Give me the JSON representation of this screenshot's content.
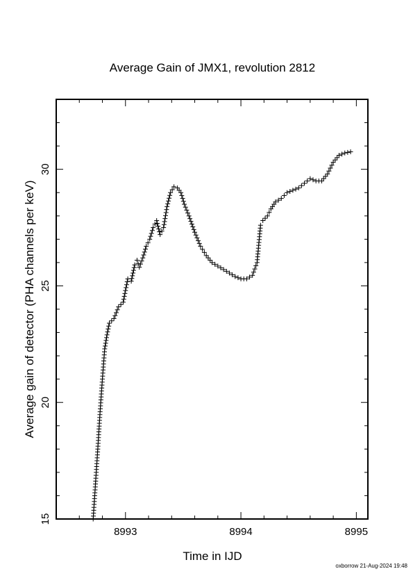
{
  "chart_data": {
    "type": "scatter",
    "title": "Average Gain of JMX1, revolution 2812",
    "xlabel": "Time in IJD",
    "ylabel": "Average gain of detector (PHA channels per keV)",
    "xlim": [
      8992.4,
      8995.1
    ],
    "ylim": [
      15,
      33
    ],
    "xticks": [
      8993,
      8994,
      8995
    ],
    "xtick_labels": [
      "8993",
      "8994",
      "8995"
    ],
    "yticks": [
      15,
      20,
      25,
      30
    ],
    "ytick_labels": [
      "15",
      "20",
      "25",
      "30"
    ],
    "grid": false,
    "marker": "+",
    "series": [
      {
        "x": [
          8992.72,
          8992.74,
          8992.76,
          8992.78,
          8992.8,
          8992.82,
          8992.84,
          8992.86,
          8992.88,
          8992.9,
          8992.94,
          8992.98,
          8993.02,
          8993.05,
          8993.08,
          8993.1,
          8993.12,
          8993.15,
          8993.18,
          8993.21,
          8993.24,
          8993.27,
          8993.3,
          8993.33,
          8993.36,
          8993.39,
          8993.42,
          8993.45,
          8993.48,
          8993.51,
          8993.55,
          8993.6,
          8993.65,
          8993.7,
          8993.75,
          8993.8,
          8993.85,
          8993.9,
          8993.95,
          8994.0,
          8994.05,
          8994.1,
          8994.14,
          8994.17,
          8994.19,
          8994.21,
          8994.23,
          8994.26,
          8994.3,
          8994.35,
          8994.4,
          8994.45,
          8994.5,
          8994.55,
          8994.6,
          8994.65,
          8994.7,
          8994.75,
          8994.8,
          8994.85,
          8994.9,
          8994.95
        ],
        "y": [
          15.0,
          16.5,
          18.0,
          19.6,
          21.0,
          22.3,
          22.9,
          23.4,
          23.5,
          23.6,
          24.1,
          24.3,
          25.3,
          25.2,
          25.9,
          26.1,
          25.8,
          26.2,
          26.7,
          27.0,
          27.5,
          27.8,
          27.2,
          27.5,
          28.4,
          29.0,
          29.25,
          29.2,
          29.0,
          28.5,
          28.0,
          27.3,
          26.7,
          26.3,
          26.0,
          25.85,
          25.7,
          25.55,
          25.4,
          25.3,
          25.3,
          25.45,
          26.0,
          27.6,
          27.8,
          27.9,
          28.0,
          28.3,
          28.6,
          28.75,
          29.0,
          29.1,
          29.2,
          29.4,
          29.6,
          29.5,
          29.5,
          29.8,
          30.3,
          30.6,
          30.7,
          30.75
        ]
      }
    ]
  },
  "footer": {
    "credit": "oxborrow 21-Aug-2024 19:48"
  }
}
